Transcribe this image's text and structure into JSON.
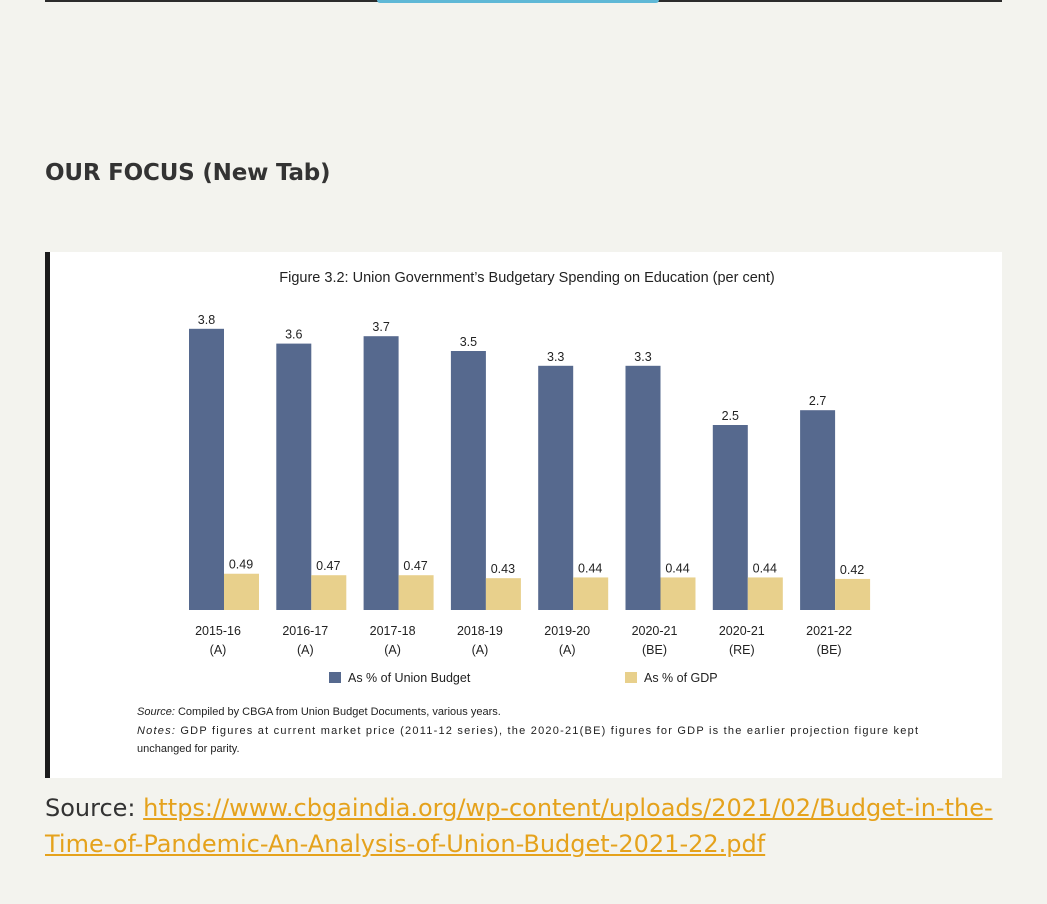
{
  "colors": {
    "accent_link": "#e5a21c",
    "bar_budget": "#56698e",
    "bar_gdp": "#e8d08c",
    "heading": "#333333"
  },
  "section": {
    "heading": "OUR FOCUS (New Tab)"
  },
  "figure": {
    "source_label": "Source:",
    "source_text": " Compiled by CBGA from Union Budget Documents, various years.",
    "notes_label": "Notes:",
    "notes_line1": " GDP figures at current market price (2011-12 series), the 2020-21(BE) figures for GDP is the earlier projection figure kept",
    "notes_line2": "unchanged for parity."
  },
  "chart_data": {
    "type": "bar",
    "title": "Figure 3.2: Union Government’s Budgetary Spending on Education (per cent)",
    "categories": [
      [
        "2015-16",
        "(A)"
      ],
      [
        "2016-17",
        "(A)"
      ],
      [
        "2017-18",
        "(A)"
      ],
      [
        "2018-19",
        "(A)"
      ],
      [
        "2019-20",
        "(A)"
      ],
      [
        "2020-21",
        "(BE)"
      ],
      [
        "2020-21",
        "(RE)"
      ],
      [
        "2021-22",
        "(BE)"
      ]
    ],
    "series": [
      {
        "name": "As % of Union Budget",
        "values": [
          3.8,
          3.6,
          3.7,
          3.5,
          3.3,
          3.3,
          2.5,
          2.7
        ],
        "labels": [
          "3.8",
          "3.6",
          "3.7",
          "3.5",
          "3.3",
          "3.3",
          "2.5",
          "2.7"
        ],
        "color": "#56698e"
      },
      {
        "name": "As % of GDP",
        "values": [
          0.49,
          0.47,
          0.47,
          0.43,
          0.44,
          0.44,
          0.44,
          0.42
        ],
        "labels": [
          "0.49",
          "0.47",
          "0.47",
          "0.43",
          "0.44",
          "0.44",
          "0.44",
          "0.42"
        ],
        "color": "#e8d08c"
      }
    ],
    "ylim": [
      0,
      4
    ],
    "grid": false,
    "legend": "bottom"
  },
  "source": {
    "label": "Source: ",
    "link_text": "https://www.cbgaindia.org/wp-content/uploads/2021/02/Budget-in-the-Time-of-Pandemic-An-Analysis-of-Union-Budget-2021-22.pdf"
  }
}
